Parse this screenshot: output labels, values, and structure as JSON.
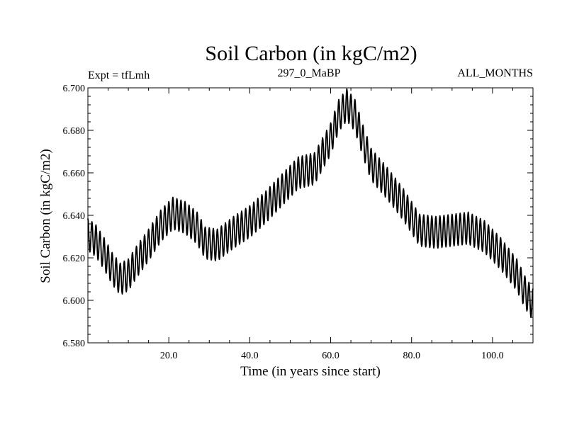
{
  "chart_data": {
    "type": "line",
    "title": "Soil Carbon (in kgC/m2)",
    "left_label": "Expt = tfLmh",
    "center_label": "297_0_MaBP",
    "right_label": "ALL_MONTHS",
    "xlabel": "Time (in years since start)",
    "ylabel": "Soil Carbon (in kgC/m2)",
    "xlim": [
      0,
      110
    ],
    "ylim": [
      6.58,
      6.7
    ],
    "x_ticks": [
      20,
      40,
      60,
      80,
      100
    ],
    "x_tick_labels": [
      "20.0",
      "40.0",
      "60.0",
      "80.0",
      "100.0"
    ],
    "y_ticks": [
      6.58,
      6.6,
      6.62,
      6.64,
      6.66,
      6.68,
      6.7
    ],
    "y_tick_labels": [
      "6.580",
      "6.600",
      "6.620",
      "6.640",
      "6.660",
      "6.680",
      "6.700"
    ],
    "seasonal_amplitude": 0.0075,
    "samples_per_year": 12,
    "series": [
      {
        "name": "Soil Carbon",
        "color": "#000000",
        "trend_x": [
          0,
          2,
          4,
          6,
          8,
          10,
          12,
          15,
          18,
          21,
          24,
          27,
          29,
          32,
          36,
          40,
          44,
          48,
          52,
          56,
          60,
          62,
          64,
          66,
          68,
          70,
          74,
          78,
          82,
          86,
          90,
          94,
          98,
          102,
          106,
          108,
          110
        ],
        "trend_y": [
          6.631,
          6.628,
          6.622,
          6.615,
          6.61,
          6.612,
          6.618,
          6.626,
          6.635,
          6.641,
          6.639,
          6.634,
          6.627,
          6.626,
          6.632,
          6.637,
          6.644,
          6.652,
          6.66,
          6.662,
          6.676,
          6.687,
          6.692,
          6.687,
          6.675,
          6.664,
          6.655,
          6.645,
          6.633,
          6.632,
          6.633,
          6.634,
          6.63,
          6.622,
          6.612,
          6.604,
          6.598
        ]
      }
    ]
  }
}
